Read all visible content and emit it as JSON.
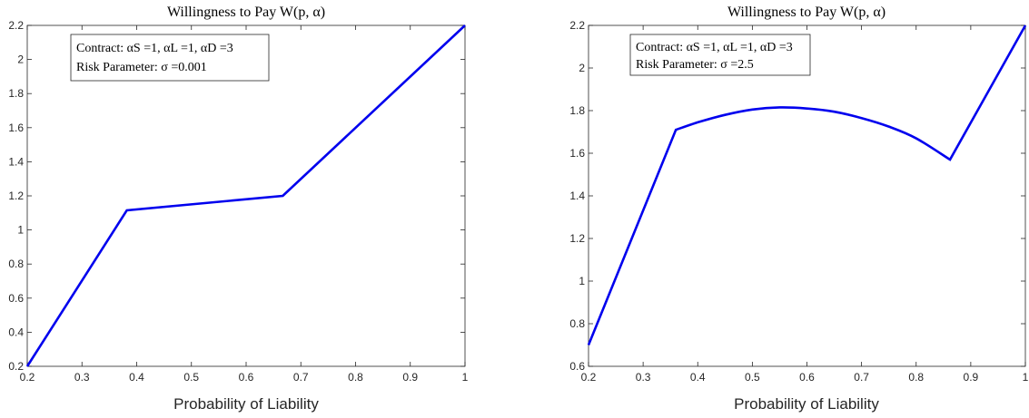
{
  "chart_data": [
    {
      "type": "line",
      "title": "Willingness to Pay W(p, α)",
      "xlabel": "Probability of Liability",
      "ylabel": "",
      "xlim": [
        0.2,
        1.0
      ],
      "ylim": [
        0.2,
        2.2
      ],
      "xticks": [
        "0.2",
        "0.3",
        "0.4",
        "0.5",
        "0.6",
        "0.7",
        "0.8",
        "0.9",
        "1"
      ],
      "yticks": [
        "0.2",
        "0.4",
        "0.6",
        "0.8",
        "1",
        "1.2",
        "1.4",
        "1.6",
        "1.8",
        "2",
        "2.2"
      ],
      "grid": false,
      "legend_placement": "top-left",
      "annotation": {
        "line1": "Contract: αS =1, αL =1, αD =3",
        "line2": "Risk Parameter: σ =0.001"
      },
      "series": [
        {
          "color": "#0000ee",
          "x": [
            0.2,
            0.382,
            0.667,
            1.0
          ],
          "y": [
            0.2,
            1.115,
            1.2,
            2.2
          ]
        }
      ]
    },
    {
      "type": "line",
      "title": "Willingness to Pay W(p, α)",
      "xlabel": "Probability of Liability",
      "ylabel": "",
      "xlim": [
        0.2,
        1.0
      ],
      "ylim": [
        0.6,
        2.2
      ],
      "xticks": [
        "0.2",
        "0.3",
        "0.4",
        "0.5",
        "0.6",
        "0.7",
        "0.8",
        "0.9",
        "1"
      ],
      "yticks": [
        "0.6",
        "0.8",
        "1",
        "1.2",
        "1.4",
        "1.6",
        "1.8",
        "2",
        "2.2"
      ],
      "grid": false,
      "legend_placement": "top-left",
      "annotation": {
        "line1": "Contract: αS =1, αL =1, αD =3",
        "line2": "Risk Parameter: σ =2.5"
      },
      "series": [
        {
          "color": "#0000ee",
          "x": [
            0.2,
            0.36,
            0.4,
            0.45,
            0.5,
            0.55,
            0.6,
            0.65,
            0.7,
            0.75,
            0.8,
            0.862,
            1.0
          ],
          "y": [
            0.7,
            1.71,
            1.745,
            1.78,
            1.805,
            1.815,
            1.81,
            1.795,
            1.765,
            1.725,
            1.67,
            1.57,
            2.2
          ]
        }
      ]
    }
  ]
}
